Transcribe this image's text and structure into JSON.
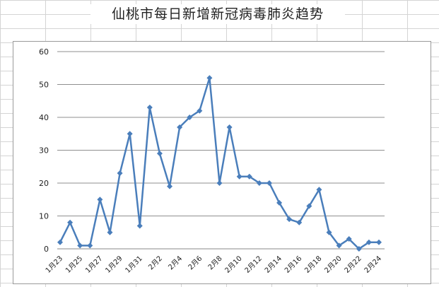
{
  "chart_data": {
    "type": "line",
    "title": "仙桃市每日新增新冠病毒肺炎趋势",
    "xlabel": "",
    "ylabel": "",
    "ylim": [
      0,
      60
    ],
    "yticks": [
      0,
      10,
      20,
      30,
      40,
      50,
      60
    ],
    "grid": "horizontal",
    "legend": "none",
    "color": "#4A7EBB",
    "x": [
      "1月23",
      "1月24",
      "1月25",
      "1月26",
      "1月27",
      "1月28",
      "1月29",
      "1月30",
      "1月31",
      "2月1",
      "2月2",
      "2月3",
      "2月4",
      "2月5",
      "2月6",
      "2月7",
      "2月8",
      "2月9",
      "2月10",
      "2月11",
      "2月12",
      "2月13",
      "2月14",
      "2月15",
      "2月16",
      "2月17",
      "2月18",
      "2月19",
      "2月20",
      "2月21",
      "2月22",
      "2月23",
      "2月24"
    ],
    "tick_labels": [
      "1月23",
      "1月25",
      "1月27",
      "1月29",
      "1月31",
      "2月2",
      "2月4",
      "2月6",
      "2月8",
      "2月10",
      "2月12",
      "2月14",
      "2月16",
      "2月18",
      "2月20",
      "2月22",
      "2月24"
    ],
    "series": [
      {
        "values": [
          2,
          8,
          1,
          1,
          15,
          5,
          23,
          35,
          7,
          43,
          29,
          19,
          37,
          40,
          42,
          52,
          20,
          37,
          22,
          22,
          20,
          20,
          14,
          9,
          8,
          13,
          18,
          5,
          1,
          3,
          0,
          2,
          2
        ]
      }
    ]
  }
}
